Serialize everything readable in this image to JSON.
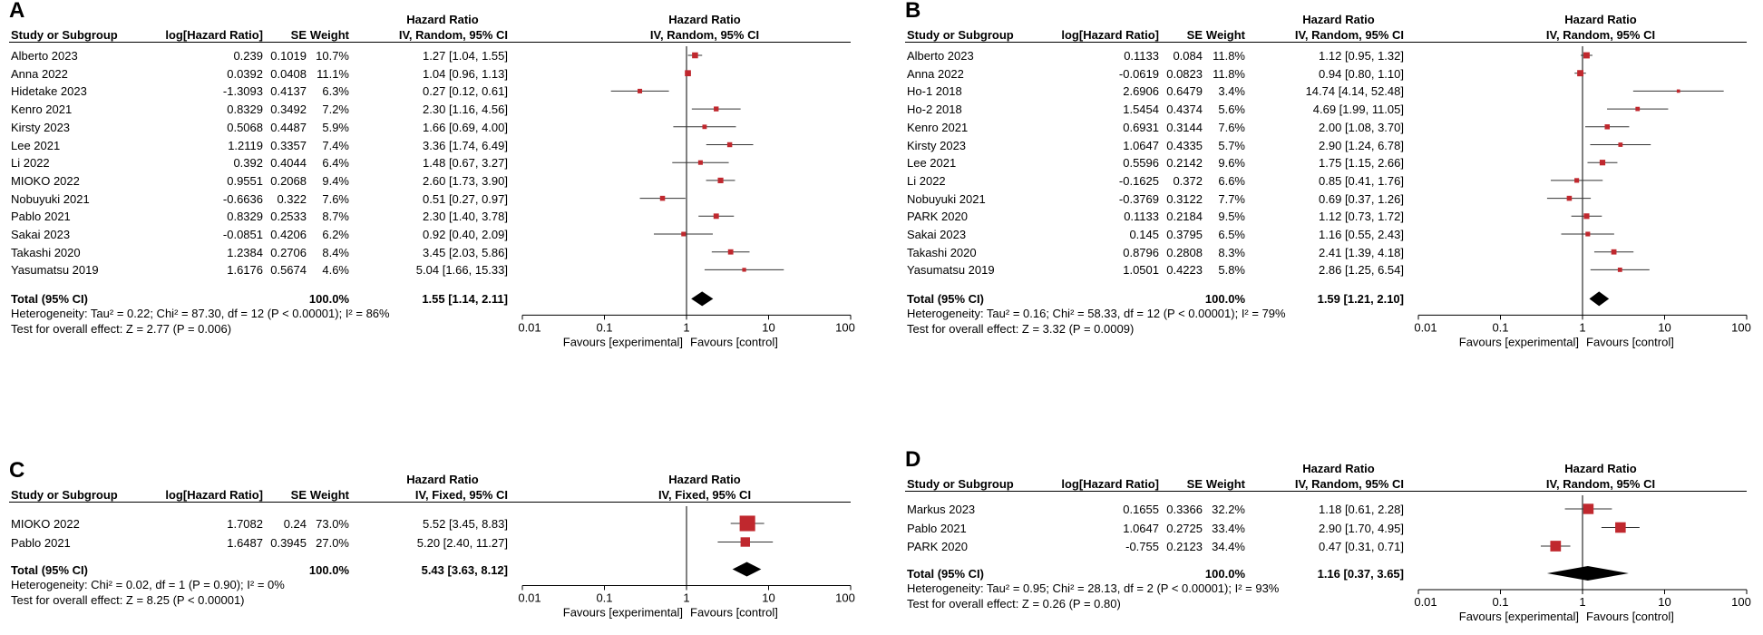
{
  "labels": {
    "study": "Study or Subgroup",
    "loghr": "log[Hazard Ratio]",
    "se": "SE",
    "weight": "Weight",
    "hazard_ratio": "Hazard Ratio",
    "favours_exp": "Favours [experimental]",
    "favours_ctrl": "Favours [control]"
  },
  "chart_data": [
    {
      "type": "forest",
      "panel": "A",
      "method": "IV, Random, 95% CI",
      "axis_ticks": [
        "0.01",
        "0.1",
        "1",
        "10",
        "100"
      ],
      "scale": "log",
      "xlim": [
        0.01,
        100
      ],
      "studies": [
        {
          "name": "Alberto 2023",
          "loghr": "0.239",
          "se": "0.1019",
          "weight": "10.7%",
          "ci_text": "1.27 [1.04, 1.55]",
          "hr": 1.27,
          "lo": 1.04,
          "hi": 1.55,
          "w": 10.7
        },
        {
          "name": "Anna 2022",
          "loghr": "0.0392",
          "se": "0.0408",
          "weight": "11.1%",
          "ci_text": "1.04 [0.96, 1.13]",
          "hr": 1.04,
          "lo": 0.96,
          "hi": 1.13,
          "w": 11.1
        },
        {
          "name": "Hidetake 2023",
          "loghr": "-1.3093",
          "se": "0.4137",
          "weight": "6.3%",
          "ci_text": "0.27 [0.12, 0.61]",
          "hr": 0.27,
          "lo": 0.12,
          "hi": 0.61,
          "w": 6.3
        },
        {
          "name": "Kenro 2021",
          "loghr": "0.8329",
          "se": "0.3492",
          "weight": "7.2%",
          "ci_text": "2.30 [1.16, 4.56]",
          "hr": 2.3,
          "lo": 1.16,
          "hi": 4.56,
          "w": 7.2
        },
        {
          "name": "Kirsty 2023",
          "loghr": "0.5068",
          "se": "0.4487",
          "weight": "5.9%",
          "ci_text": "1.66 [0.69, 4.00]",
          "hr": 1.66,
          "lo": 0.69,
          "hi": 4.0,
          "w": 5.9
        },
        {
          "name": "Lee 2021",
          "loghr": "1.2119",
          "se": "0.3357",
          "weight": "7.4%",
          "ci_text": "3.36 [1.74, 6.49]",
          "hr": 3.36,
          "lo": 1.74,
          "hi": 6.49,
          "w": 7.4
        },
        {
          "name": "Li 2022",
          "loghr": "0.392",
          "se": "0.4044",
          "weight": "6.4%",
          "ci_text": "1.48 [0.67, 3.27]",
          "hr": 1.48,
          "lo": 0.67,
          "hi": 3.27,
          "w": 6.4
        },
        {
          "name": "MIOKO 2022",
          "loghr": "0.9551",
          "se": "0.2068",
          "weight": "9.4%",
          "ci_text": "2.60 [1.73, 3.90]",
          "hr": 2.6,
          "lo": 1.73,
          "hi": 3.9,
          "w": 9.4
        },
        {
          "name": "Nobuyuki 2021",
          "loghr": "-0.6636",
          "se": "0.322",
          "weight": "7.6%",
          "ci_text": "0.51 [0.27, 0.97]",
          "hr": 0.51,
          "lo": 0.27,
          "hi": 0.97,
          "w": 7.6
        },
        {
          "name": "Pablo 2021",
          "loghr": "0.8329",
          "se": "0.2533",
          "weight": "8.7%",
          "ci_text": "2.30 [1.40, 3.78]",
          "hr": 2.3,
          "lo": 1.4,
          "hi": 3.78,
          "w": 8.7
        },
        {
          "name": "Sakai 2023",
          "loghr": "-0.0851",
          "se": "0.4206",
          "weight": "6.2%",
          "ci_text": "0.92 [0.40, 2.09]",
          "hr": 0.92,
          "lo": 0.4,
          "hi": 2.09,
          "w": 6.2
        },
        {
          "name": "Takashi 2020",
          "loghr": "1.2384",
          "se": "0.2706",
          "weight": "8.4%",
          "ci_text": "3.45 [2.03, 5.86]",
          "hr": 3.45,
          "lo": 2.03,
          "hi": 5.86,
          "w": 8.4
        },
        {
          "name": "Yasumatsu 2019",
          "loghr": "1.6176",
          "se": "0.5674",
          "weight": "4.6%",
          "ci_text": "5.04 [1.66, 15.33]",
          "hr": 5.04,
          "lo": 1.66,
          "hi": 15.33,
          "w": 4.6
        }
      ],
      "total": {
        "label": "Total (95% CI)",
        "weight": "100.0%",
        "ci_text": "1.55 [1.14, 2.11]",
        "hr": 1.55,
        "lo": 1.14,
        "hi": 2.11
      },
      "heterogeneity": "Heterogeneity: Tau² = 0.22; Chi² = 87.30, df = 12 (P < 0.00001); I² = 86%",
      "overall": "Test for overall effect: Z = 2.77 (P = 0.006)"
    },
    {
      "type": "forest",
      "panel": "B",
      "method": "IV, Random, 95% CI",
      "axis_ticks": [
        "0.01",
        "0.1",
        "1",
        "10",
        "100"
      ],
      "scale": "log",
      "xlim": [
        0.01,
        100
      ],
      "studies": [
        {
          "name": "Alberto 2023",
          "loghr": "0.1133",
          "se": "0.084",
          "weight": "11.8%",
          "ci_text": "1.12 [0.95, 1.32]",
          "hr": 1.12,
          "lo": 0.95,
          "hi": 1.32,
          "w": 11.8
        },
        {
          "name": "Anna 2022",
          "loghr": "-0.0619",
          "se": "0.0823",
          "weight": "11.8%",
          "ci_text": "0.94 [0.80, 1.10]",
          "hr": 0.94,
          "lo": 0.8,
          "hi": 1.1,
          "w": 11.8
        },
        {
          "name": "Ho-1 2018",
          "loghr": "2.6906",
          "se": "0.6479",
          "weight": "3.4%",
          "ci_text": "14.74 [4.14, 52.48]",
          "hr": 14.74,
          "lo": 4.14,
          "hi": 52.48,
          "w": 3.4
        },
        {
          "name": "Ho-2 2018",
          "loghr": "1.5454",
          "se": "0.4374",
          "weight": "5.6%",
          "ci_text": "4.69 [1.99, 11.05]",
          "hr": 4.69,
          "lo": 1.99,
          "hi": 11.05,
          "w": 5.6
        },
        {
          "name": "Kenro 2021",
          "loghr": "0.6931",
          "se": "0.3144",
          "weight": "7.6%",
          "ci_text": "2.00 [1.08, 3.70]",
          "hr": 2.0,
          "lo": 1.08,
          "hi": 3.7,
          "w": 7.6
        },
        {
          "name": "Kirsty 2023",
          "loghr": "1.0647",
          "se": "0.4335",
          "weight": "5.7%",
          "ci_text": "2.90 [1.24, 6.78]",
          "hr": 2.9,
          "lo": 1.24,
          "hi": 6.78,
          "w": 5.7
        },
        {
          "name": "Lee 2021",
          "loghr": "0.5596",
          "se": "0.2142",
          "weight": "9.6%",
          "ci_text": "1.75 [1.15, 2.66]",
          "hr": 1.75,
          "lo": 1.15,
          "hi": 2.66,
          "w": 9.6
        },
        {
          "name": "Li 2022",
          "loghr": "-0.1625",
          "se": "0.372",
          "weight": "6.6%",
          "ci_text": "0.85 [0.41, 1.76]",
          "hr": 0.85,
          "lo": 0.41,
          "hi": 1.76,
          "w": 6.6
        },
        {
          "name": "Nobuyuki 2021",
          "loghr": "-0.3769",
          "se": "0.3122",
          "weight": "7.7%",
          "ci_text": "0.69 [0.37, 1.26]",
          "hr": 0.69,
          "lo": 0.37,
          "hi": 1.26,
          "w": 7.7
        },
        {
          "name": "PARK 2020",
          "loghr": "0.1133",
          "se": "0.2184",
          "weight": "9.5%",
          "ci_text": "1.12 [0.73, 1.72]",
          "hr": 1.12,
          "lo": 0.73,
          "hi": 1.72,
          "w": 9.5
        },
        {
          "name": "Sakai 2023",
          "loghr": "0.145",
          "se": "0.3795",
          "weight": "6.5%",
          "ci_text": "1.16 [0.55, 2.43]",
          "hr": 1.16,
          "lo": 0.55,
          "hi": 2.43,
          "w": 6.5
        },
        {
          "name": "Takashi 2020",
          "loghr": "0.8796",
          "se": "0.2808",
          "weight": "8.3%",
          "ci_text": "2.41 [1.39, 4.18]",
          "hr": 2.41,
          "lo": 1.39,
          "hi": 4.18,
          "w": 8.3
        },
        {
          "name": "Yasumatsu 2019",
          "loghr": "1.0501",
          "se": "0.4223",
          "weight": "5.8%",
          "ci_text": "2.86 [1.25, 6.54]",
          "hr": 2.86,
          "lo": 1.25,
          "hi": 6.54,
          "w": 5.8
        }
      ],
      "total": {
        "label": "Total (95% CI)",
        "weight": "100.0%",
        "ci_text": "1.59 [1.21, 2.10]",
        "hr": 1.59,
        "lo": 1.21,
        "hi": 2.1
      },
      "heterogeneity": "Heterogeneity: Tau² = 0.16; Chi² = 58.33, df = 12 (P < 0.00001); I² = 79%",
      "overall": "Test for overall effect: Z = 3.32 (P = 0.0009)"
    },
    {
      "type": "forest",
      "panel": "C",
      "method": "IV, Fixed, 95% CI",
      "axis_ticks": [
        "0.01",
        "0.1",
        "1",
        "10",
        "100"
      ],
      "scale": "log",
      "xlim": [
        0.01,
        100
      ],
      "studies": [
        {
          "name": "MIOKO 2022",
          "loghr": "1.7082",
          "se": "0.24",
          "weight": "73.0%",
          "ci_text": "5.52 [3.45, 8.83]",
          "hr": 5.52,
          "lo": 3.45,
          "hi": 8.83,
          "w": 73.0
        },
        {
          "name": "Pablo 2021",
          "loghr": "1.6487",
          "se": "0.3945",
          "weight": "27.0%",
          "ci_text": "5.20 [2.40, 11.27]",
          "hr": 5.2,
          "lo": 2.4,
          "hi": 11.27,
          "w": 27.0
        }
      ],
      "total": {
        "label": "Total (95% CI)",
        "weight": "100.0%",
        "ci_text": "5.43 [3.63, 8.12]",
        "hr": 5.43,
        "lo": 3.63,
        "hi": 8.12
      },
      "heterogeneity": "Heterogeneity: Chi² = 0.02, df = 1 (P = 0.90); I² = 0%",
      "overall": "Test for overall effect: Z = 8.25 (P < 0.00001)"
    },
    {
      "type": "forest",
      "panel": "D",
      "method": "IV, Random, 95% CI",
      "axis_ticks": [
        "0.01",
        "0.1",
        "1",
        "10",
        "100"
      ],
      "scale": "log",
      "xlim": [
        0.01,
        100
      ],
      "studies": [
        {
          "name": "Markus 2023",
          "loghr": "0.1655",
          "se": "0.3366",
          "weight": "32.2%",
          "ci_text": "1.18 [0.61, 2.28]",
          "hr": 1.18,
          "lo": 0.61,
          "hi": 2.28,
          "w": 32.2
        },
        {
          "name": "Pablo 2021",
          "loghr": "1.0647",
          "se": "0.2725",
          "weight": "33.4%",
          "ci_text": "2.90 [1.70, 4.95]",
          "hr": 2.9,
          "lo": 1.7,
          "hi": 4.95,
          "w": 33.4
        },
        {
          "name": "PARK 2020",
          "loghr": "-0.755",
          "se": "0.2123",
          "weight": "34.4%",
          "ci_text": "0.47 [0.31, 0.71]",
          "hr": 0.47,
          "lo": 0.31,
          "hi": 0.71,
          "w": 34.4
        }
      ],
      "total": {
        "label": "Total (95% CI)",
        "weight": "100.0%",
        "ci_text": "1.16 [0.37, 3.65]",
        "hr": 1.16,
        "lo": 0.37,
        "hi": 3.65
      },
      "heterogeneity": "Heterogeneity: Tau² = 0.95; Chi² = 28.13, df = 2 (P < 0.00001); I² = 93%",
      "overall": "Test for overall effect: Z = 0.26 (P = 0.80)"
    }
  ]
}
